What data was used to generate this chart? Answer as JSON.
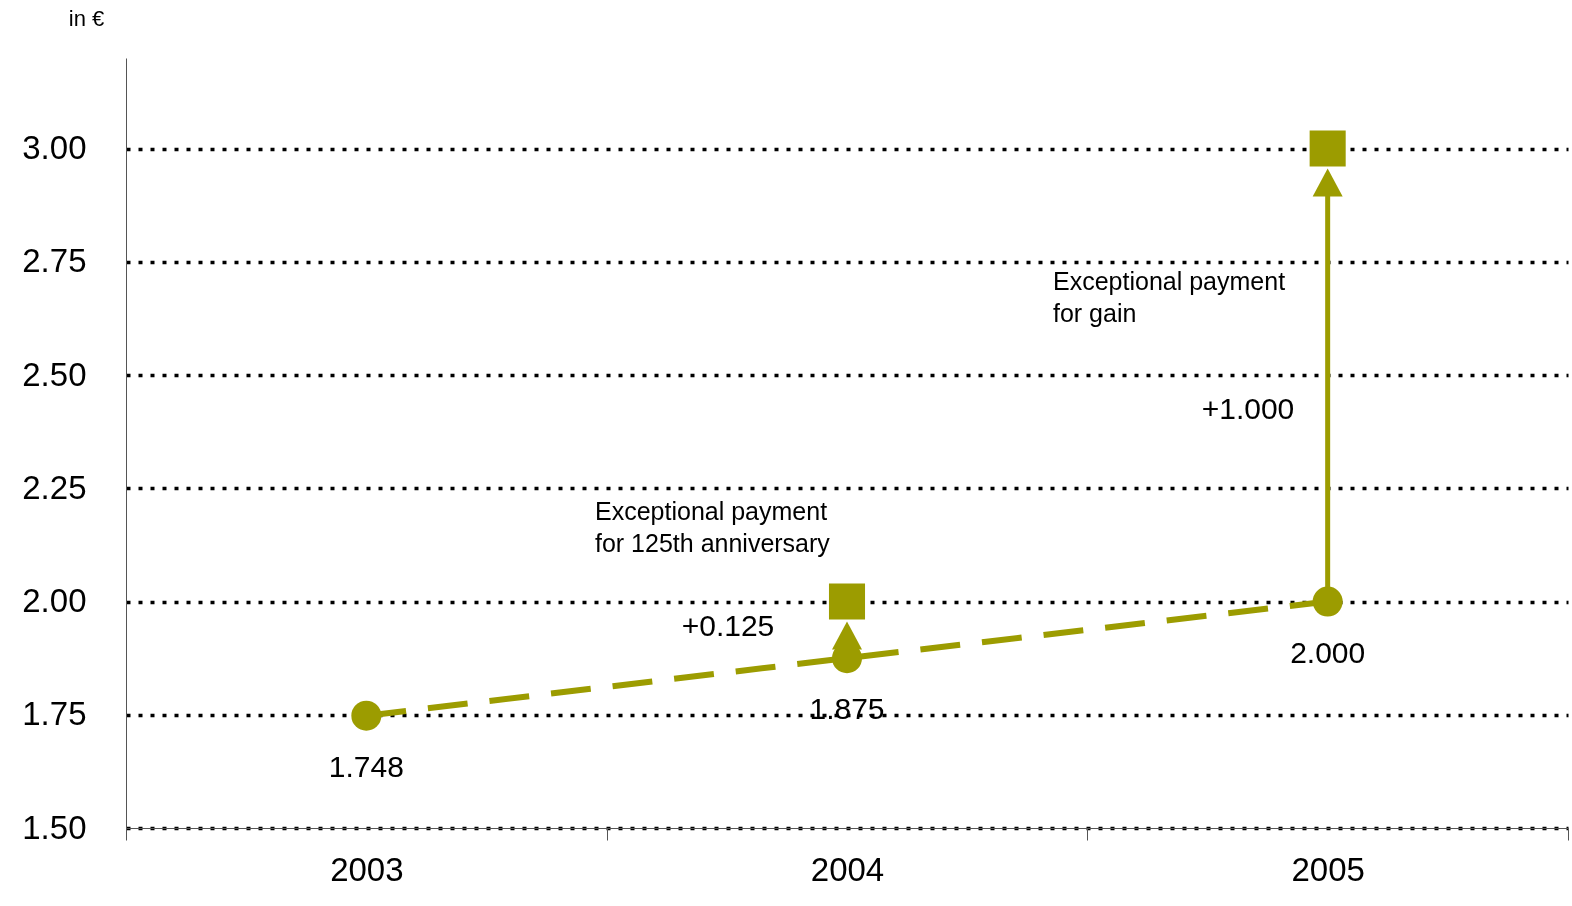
{
  "chart_data": {
    "type": "line",
    "categories": [
      "2003",
      "2004",
      "2005"
    ],
    "ylabel": "in €",
    "ylim": [
      1.5,
      3.2
    ],
    "yticks": [
      {
        "value": 1.5,
        "label": "1.50"
      },
      {
        "value": 1.75,
        "label": "1.75"
      },
      {
        "value": 2.0,
        "label": "2.00"
      },
      {
        "value": 2.25,
        "label": "2.25"
      },
      {
        "value": 2.5,
        "label": "2.50"
      },
      {
        "value": 2.75,
        "label": "2.75"
      },
      {
        "value": 3.0,
        "label": "3.00"
      }
    ],
    "grid": "y",
    "series": [
      {
        "color": "#9c9c00",
        "values": [
          1.748,
          1.875,
          2.0
        ],
        "marker": "circle",
        "line_style": "dashed",
        "value_labels": [
          "1.748",
          "1.875",
          "2.000"
        ]
      },
      {
        "type": "scatter",
        "color": "#9c9c00",
        "values": [
          null,
          2.0,
          3.0
        ],
        "marker": "square"
      }
    ],
    "annotations": [
      "Exceptional payment\nfor 125th anniversary",
      "+0.125",
      "Exceptional payment\nfor gain",
      "+1.000"
    ]
  }
}
